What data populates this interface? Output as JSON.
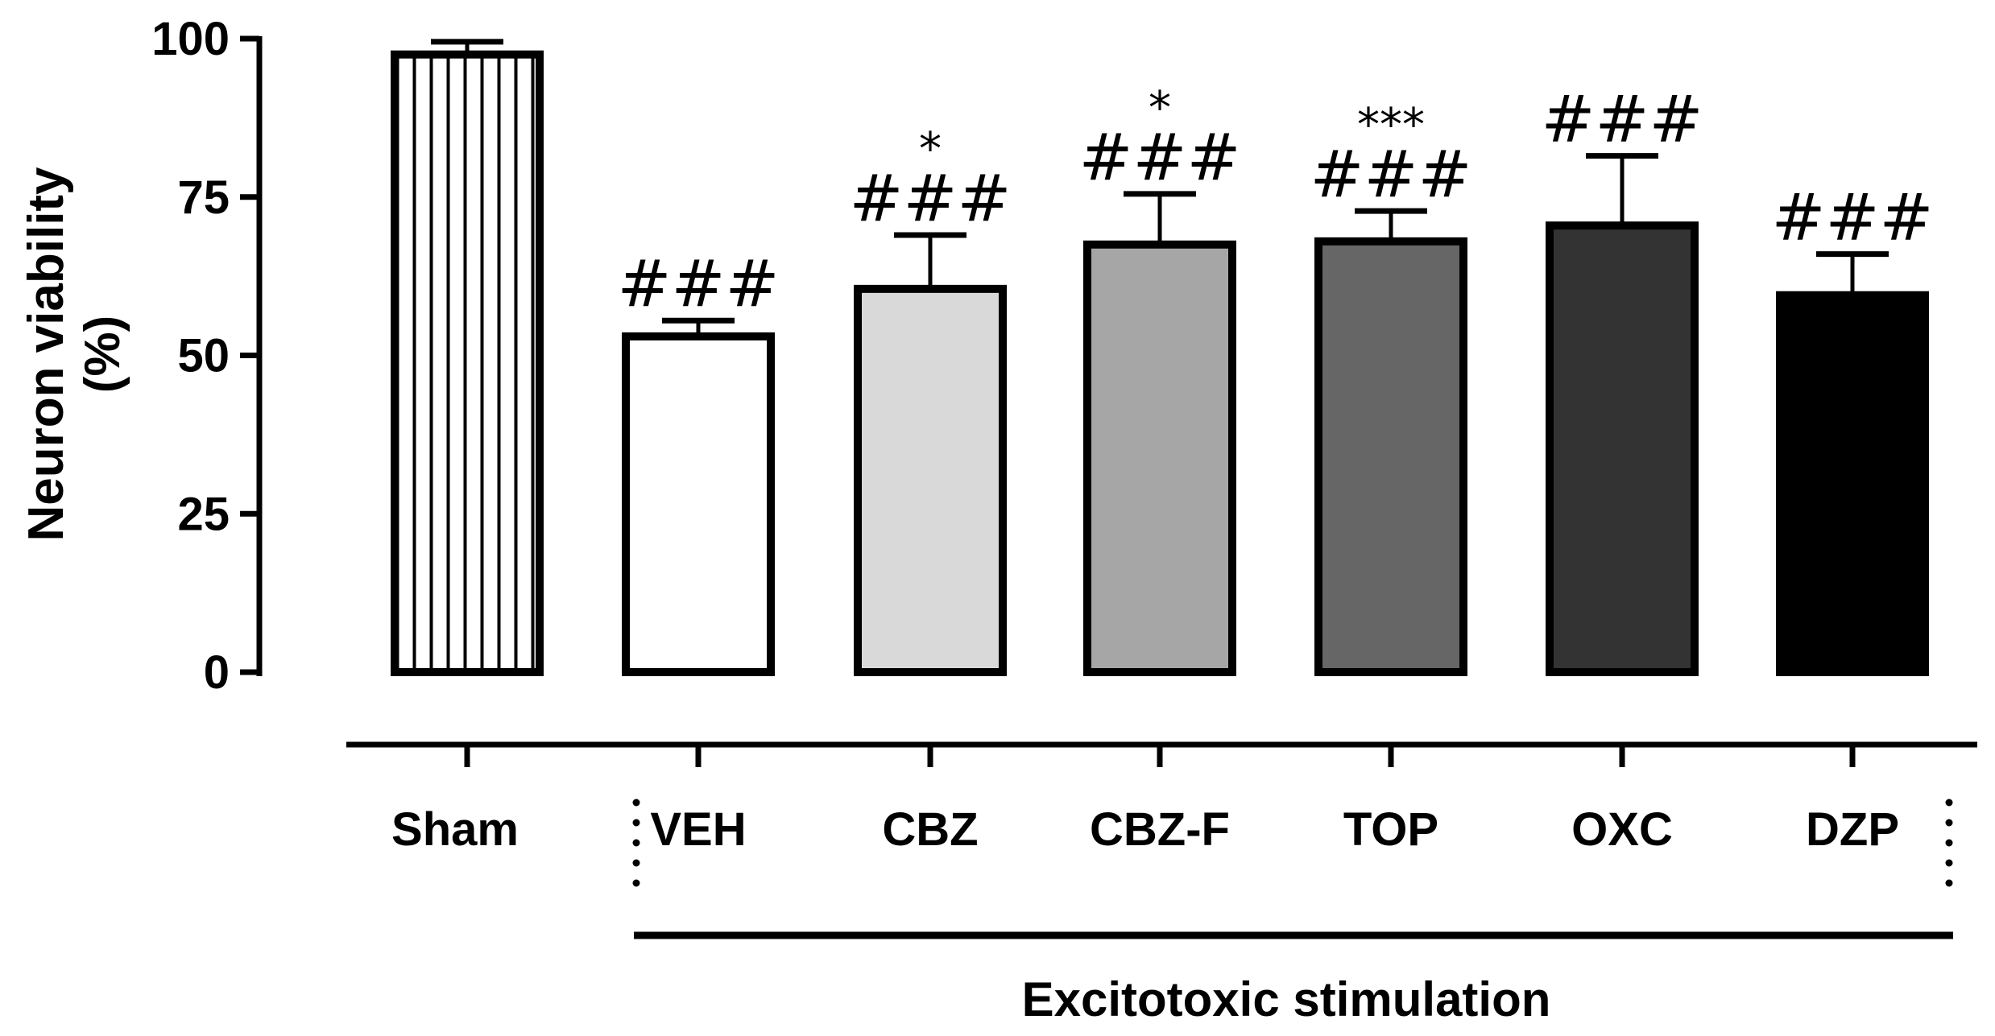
{
  "chart_data": {
    "type": "bar",
    "ylabel_lines": [
      "Neuron viability",
      "(%)"
    ],
    "ylim": [
      0,
      100
    ],
    "yticks": [
      "0",
      "25",
      "50",
      "75",
      "100"
    ],
    "yticks_values": [
      0,
      25,
      50,
      75,
      100
    ],
    "categories": [
      "Sham",
      "VEH",
      "CBZ",
      "CBZ-F",
      "TOP",
      "OXC",
      "DZP"
    ],
    "values": [
      97.5,
      53,
      60.5,
      67.5,
      68,
      70.5,
      59.5
    ],
    "errors": [
      2,
      2.5,
      8.5,
      8,
      4.8,
      11,
      6.5
    ],
    "fills": [
      "stripes",
      "#ffffff",
      "#d9d9d9",
      "#a6a6a6",
      "#666666",
      "#333333",
      "#000000"
    ],
    "hash_annotations": [
      "",
      "###",
      "###",
      "###",
      "###",
      "###",
      "###"
    ],
    "star_annotations": [
      "",
      "",
      "*",
      "*",
      "***",
      "",
      ""
    ],
    "group_label": "Excitotoxic stimulation",
    "group_members": [
      "VEH",
      "CBZ",
      "CBZ-F",
      "TOP",
      "OXC",
      "DZP"
    ],
    "grid": false,
    "legend": "none"
  }
}
